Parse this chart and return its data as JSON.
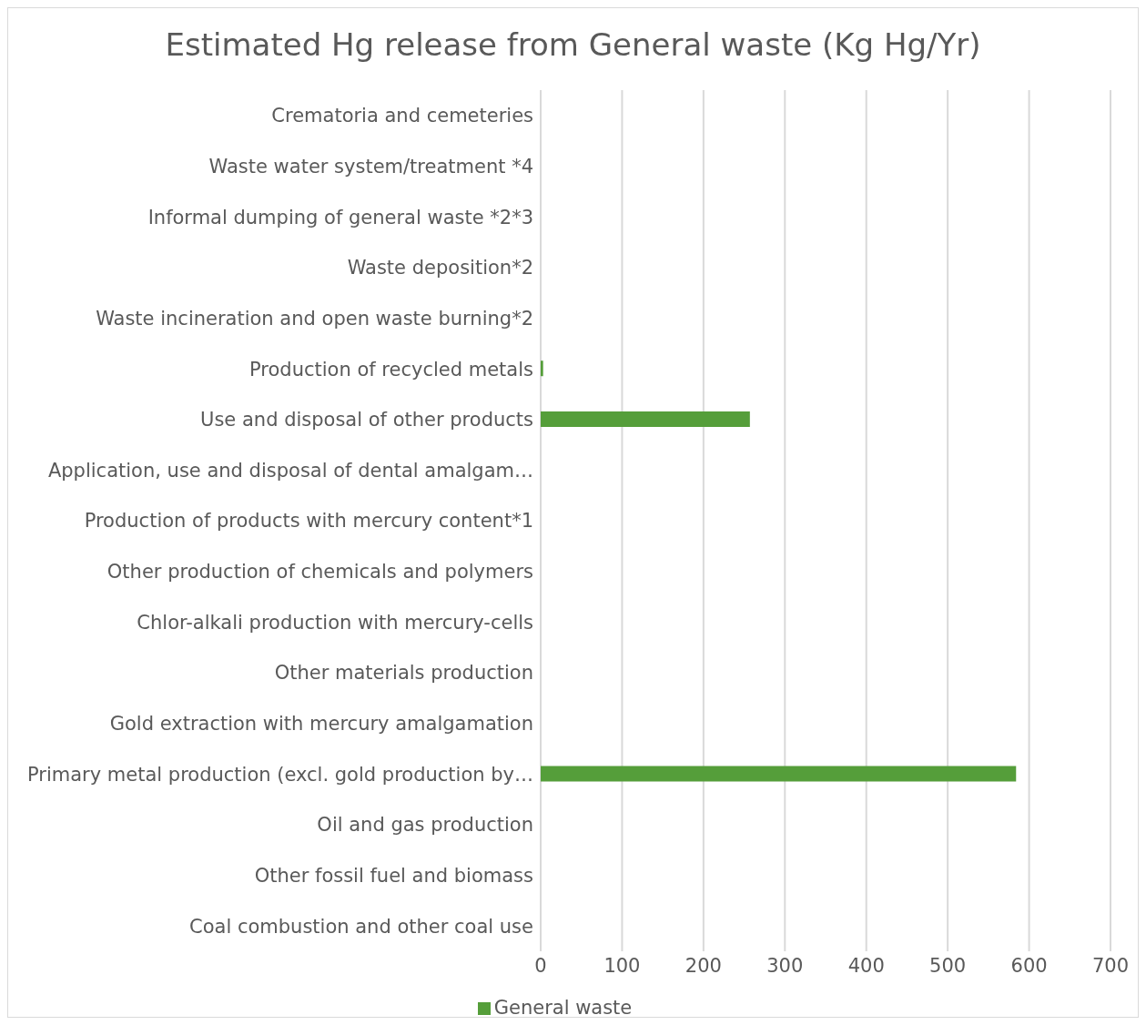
{
  "chart_data": {
    "type": "bar",
    "orientation": "horizontal",
    "title": "Estimated Hg release from General waste (Kg Hg/Yr)",
    "categories": [
      "Crematoria and cemeteries",
      "Waste water system/treatment *4",
      "Informal dumping of general waste *2*3",
      "Waste deposition*2",
      "Waste incineration and open waste burning*2",
      "Production of recycled metals",
      "Use and disposal of other products",
      "Application, use and disposal of dental amalgam…",
      "Production of products with mercury content*1",
      "Other production of chemicals and polymers",
      "Chlor-alkali production with mercury-cells",
      "Other materials production",
      "Gold extraction with mercury amalgamation",
      "Primary metal production (excl. gold production by…",
      "Oil and gas production",
      "Other fossil fuel and biomass",
      "Coal combustion and other coal use"
    ],
    "series": [
      {
        "name": "General waste",
        "color": "#559e3a",
        "values": [
          0,
          0,
          0,
          0,
          0,
          3,
          257,
          0,
          0,
          0,
          0,
          0,
          0,
          584,
          0,
          0,
          0
        ]
      }
    ],
    "xlim": [
      0,
      700
    ],
    "xticks": [
      0,
      100,
      200,
      300,
      400,
      500,
      600,
      700
    ],
    "grid": "x",
    "legend": "bottom"
  }
}
